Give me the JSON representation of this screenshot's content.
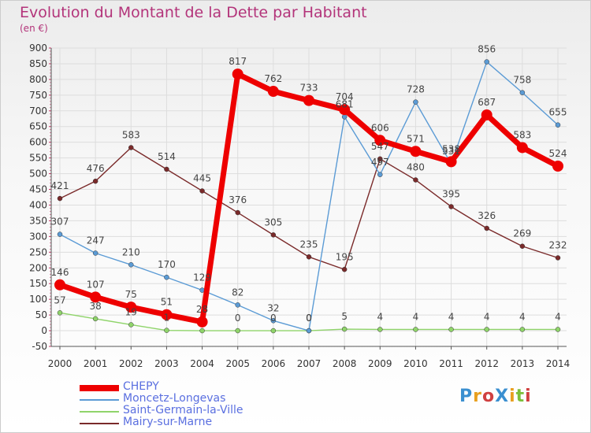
{
  "chart_data": {
    "type": "line",
    "title": "Evolution du Montant de la Dette par Habitant",
    "unit_label": "(en €)",
    "categories": [
      "2000",
      "2001",
      "2002",
      "2003",
      "2004",
      "2005",
      "2006",
      "2007",
      "2008",
      "2009",
      "2010",
      "2011",
      "2012",
      "2013",
      "2014"
    ],
    "ylim": [
      -50,
      900
    ],
    "yticks": [
      -50,
      0,
      50,
      100,
      150,
      200,
      250,
      300,
      350,
      400,
      450,
      500,
      550,
      600,
      650,
      700,
      750,
      800,
      850,
      900
    ],
    "grid": true,
    "legend_position": "bottom-left",
    "series": [
      {
        "name": "CHEPY",
        "color": "#ee0000",
        "values": [
          146,
          107,
          75,
          51,
          28,
          817,
          762,
          733,
          704,
          606,
          571,
          538,
          687,
          583,
          524
        ]
      },
      {
        "name": "Moncetz-Longevas",
        "color": "#5b9bd5",
        "values": [
          307,
          247,
          210,
          170,
          129,
          82,
          32,
          0,
          681,
          497,
          728,
          531,
          856,
          758,
          655
        ]
      },
      {
        "name": "Saint-Germain-la-Ville",
        "color": "#8fd46a",
        "values": [
          57,
          38,
          19,
          1,
          0,
          0,
          0,
          0,
          5,
          4,
          4,
          4,
          4,
          4,
          4
        ]
      },
      {
        "name": "Mairy-sur-Marne",
        "color": "#7a2a2a",
        "values": [
          421,
          476,
          583,
          514,
          445,
          376,
          305,
          235,
          195,
          547,
          480,
          395,
          326,
          269,
          232
        ]
      }
    ],
    "data_labels": [
      {
        "series": "CHEPY",
        "labels": [
          "146",
          "107",
          "75",
          "51",
          "28",
          "817",
          "762",
          "733",
          "704",
          "606",
          "571",
          "538",
          "687",
          "583",
          "524"
        ]
      },
      {
        "series": "Moncetz-Longevas",
        "labels": [
          "307",
          "247",
          "210",
          "170",
          "129",
          "82",
          "32",
          "0",
          "681",
          "497",
          "728",
          "531",
          "856",
          "758",
          "655"
        ]
      },
      {
        "series": "Saint-Germain-la-Ville",
        "labels": [
          "57",
          "38",
          "19",
          "1",
          "",
          "0",
          "0",
          "0",
          "5",
          "4",
          "4",
          "4",
          "4",
          "4",
          "4"
        ]
      },
      {
        "series": "Mairy-sur-Marne",
        "labels": [
          "421",
          "476",
          "583",
          "514",
          "445",
          "376",
          "305",
          "235",
          "195",
          "547",
          "480",
          "395",
          "326",
          "269",
          "232"
        ]
      }
    ]
  },
  "logo": {
    "text": "ProXiti"
  }
}
